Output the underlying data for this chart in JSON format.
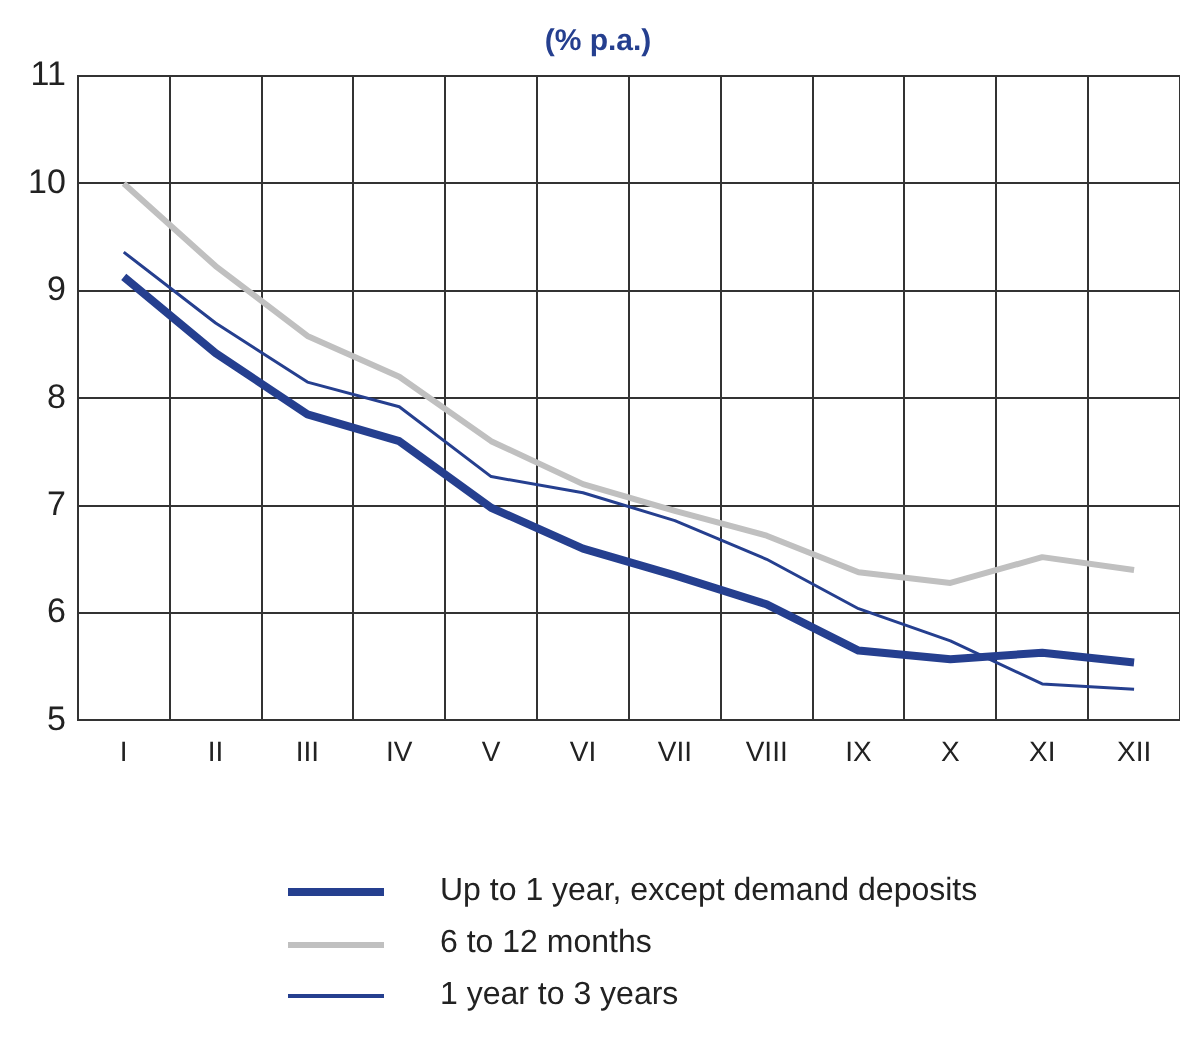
{
  "chart_data": {
    "type": "line",
    "title": "(% p.a.)",
    "categories": [
      "I",
      "II",
      "III",
      "IV",
      "V",
      "VI",
      "VII",
      "VIII",
      "IX",
      "X",
      "XI",
      "XII"
    ],
    "ylim": [
      5,
      11
    ],
    "yticks": [
      5,
      6,
      7,
      8,
      9,
      10,
      11
    ],
    "grid": true,
    "legend": "bottom",
    "marker": "none",
    "line_style": "solid",
    "series": [
      {
        "name": "Up to 1 year, except demand deposits",
        "color": "#253f8f",
        "values": [
          9.13,
          8.42,
          7.85,
          7.6,
          6.98,
          6.6,
          6.35,
          6.08,
          5.65,
          5.57,
          5.63,
          5.54
        ]
      },
      {
        "name": "6 to 12 months",
        "color": "#c0c0c0",
        "values": [
          10.0,
          9.23,
          8.58,
          8.2,
          7.6,
          7.2,
          6.95,
          6.72,
          6.38,
          6.28,
          6.52,
          6.4
        ]
      },
      {
        "name": "1 year to 3 years",
        "color": "#253f8f",
        "values": [
          9.36,
          8.7,
          8.15,
          7.92,
          7.27,
          7.12,
          6.86,
          6.5,
          6.04,
          5.74,
          5.34,
          5.29
        ]
      }
    ]
  }
}
